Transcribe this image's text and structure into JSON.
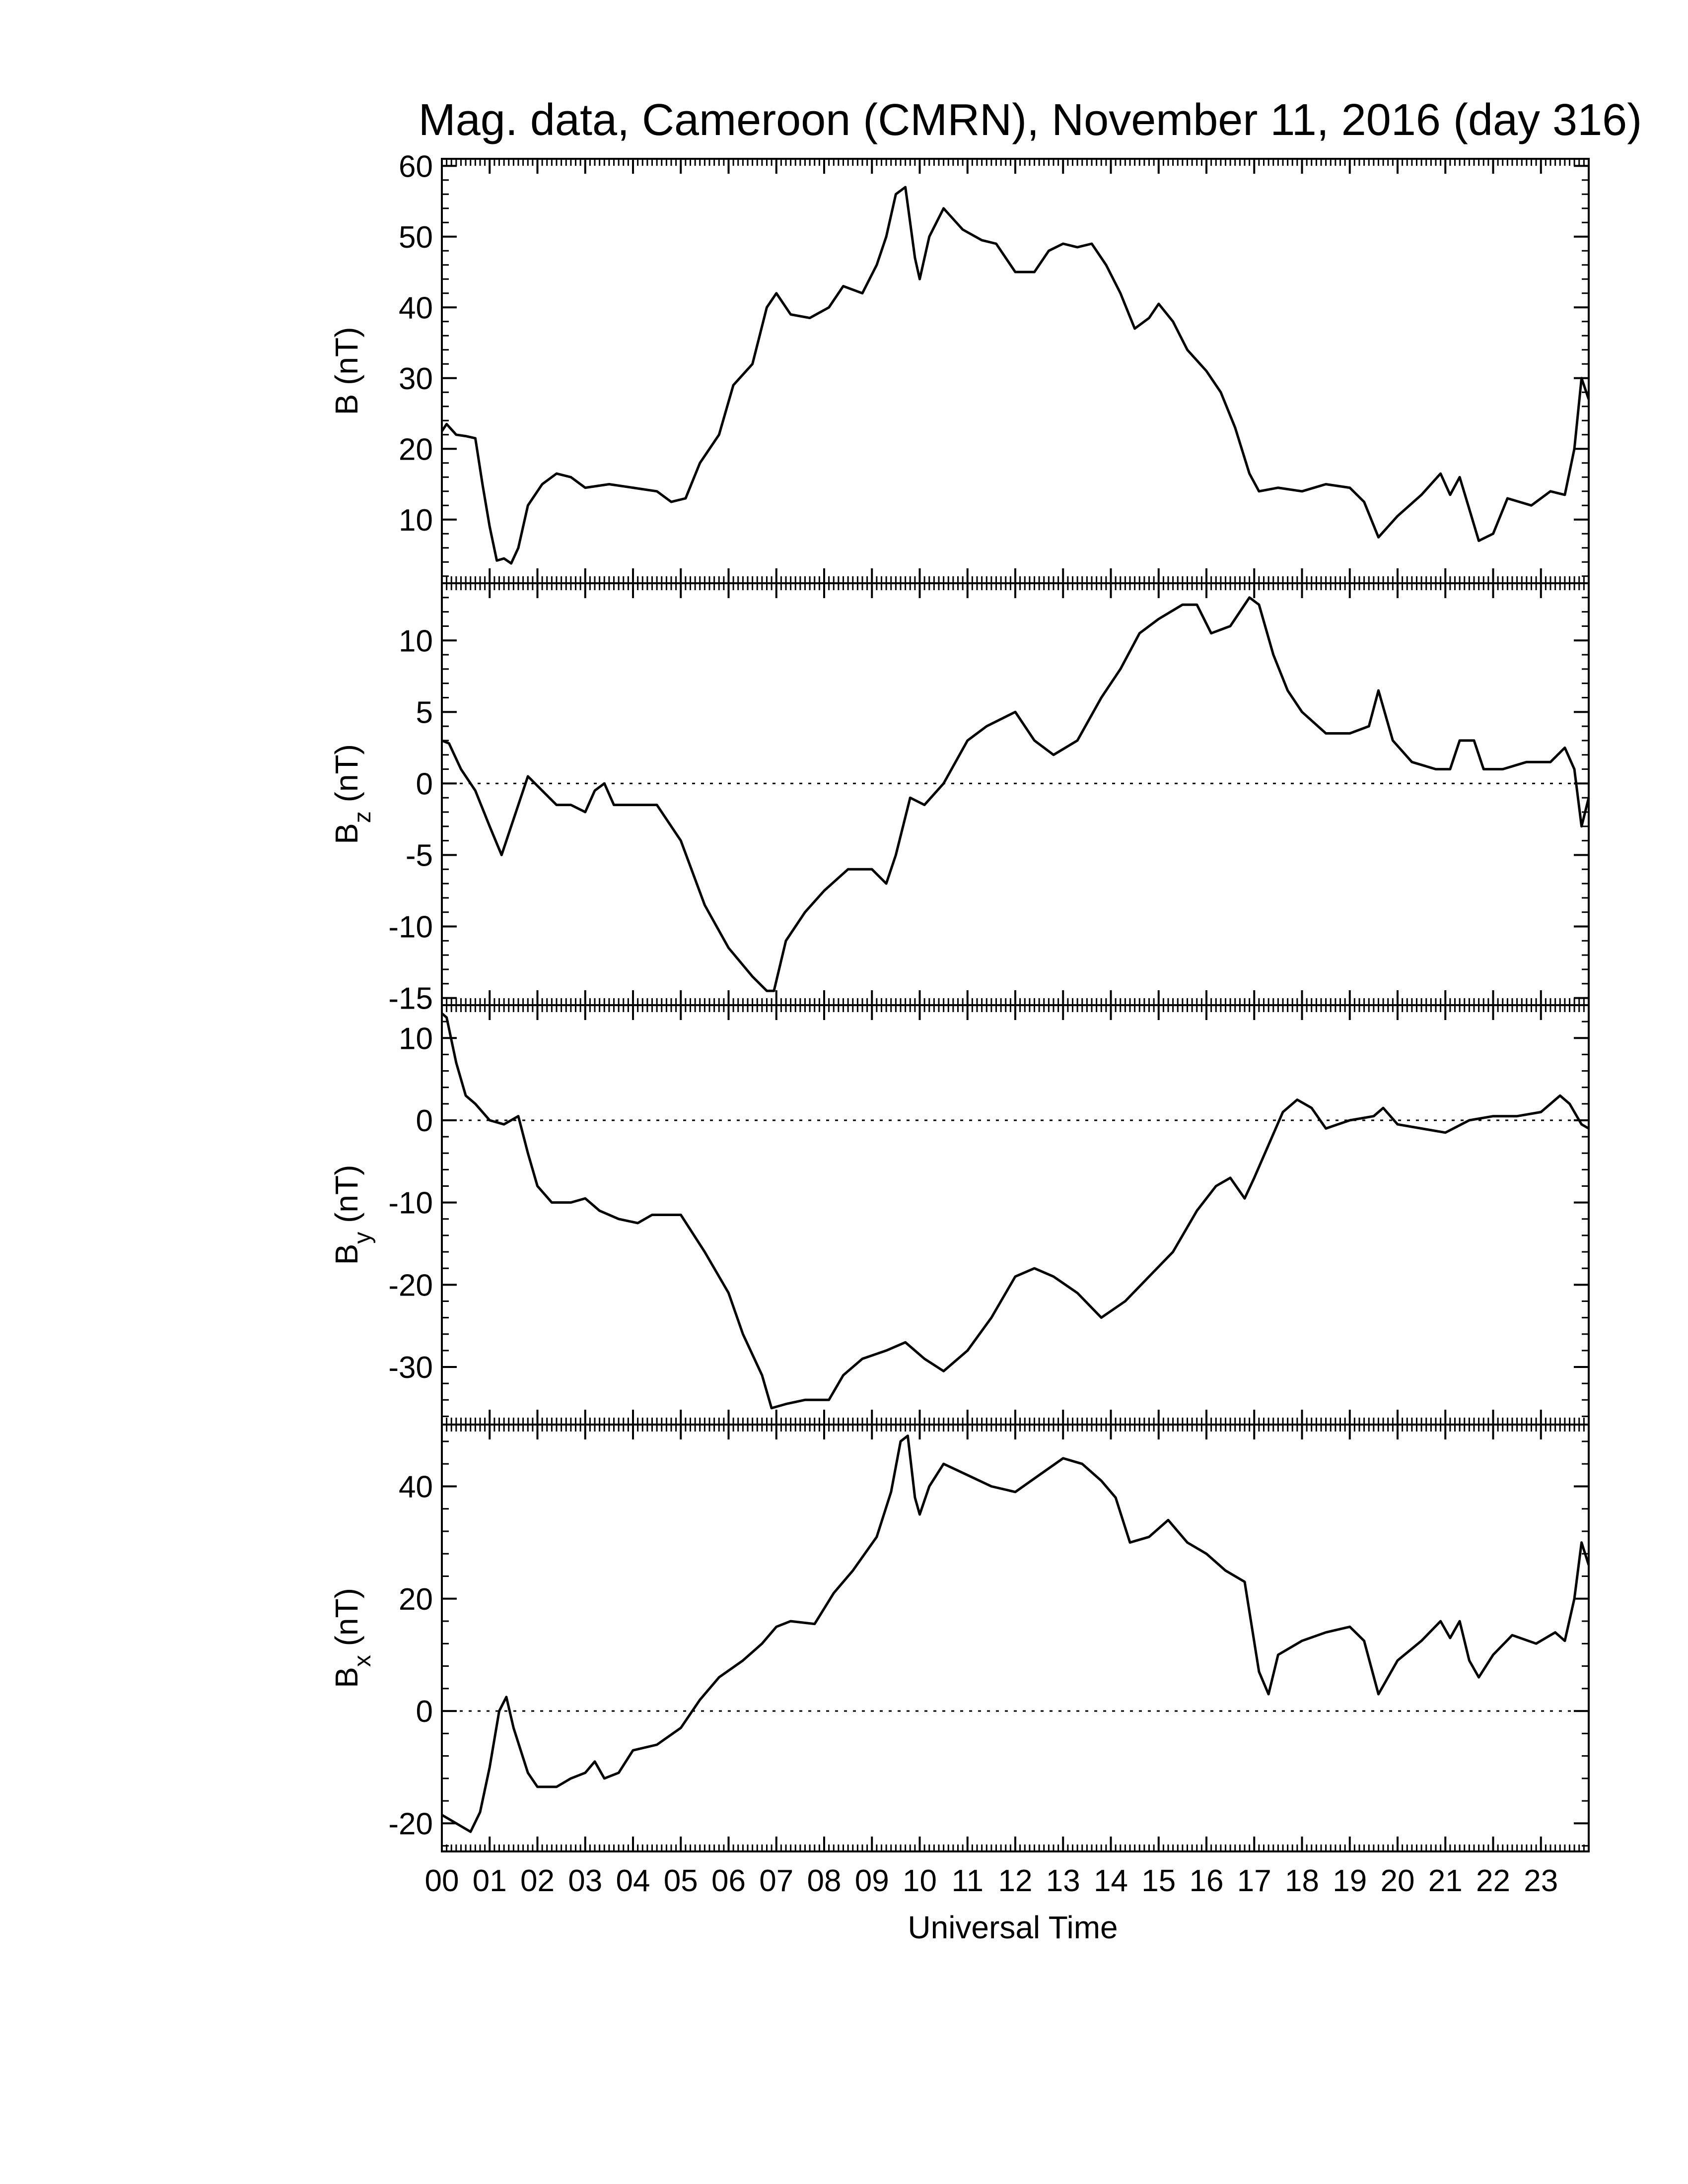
{
  "chart_data": {
    "type": "line",
    "title": "Mag. data, Cameroon (CMRN), November 11, 2016 (day 316)",
    "xlabel": "Universal Time",
    "xlim": [
      0,
      24
    ],
    "x_tick_labels": [
      "00",
      "01",
      "02",
      "03",
      "04",
      "05",
      "06",
      "07",
      "08",
      "09",
      "10",
      "11",
      "12",
      "13",
      "14",
      "15",
      "16",
      "17",
      "18",
      "19",
      "20",
      "21",
      "22",
      "23"
    ],
    "line_color": "#000000",
    "panels": [
      {
        "key": "B",
        "ylabel_main": "B (nT)",
        "ylabel_sub": "",
        "ylim": [
          1,
          61
        ],
        "yticks": [
          10,
          20,
          30,
          40,
          50,
          60
        ],
        "zero_line": false,
        "points": [
          [
            0,
            22.5
          ],
          [
            0.1,
            23.5
          ],
          [
            0.3,
            22
          ],
          [
            0.5,
            21.8
          ],
          [
            0.7,
            21.5
          ],
          [
            0.85,
            15
          ],
          [
            1,
            9
          ],
          [
            1.15,
            4.2
          ],
          [
            1.3,
            4.5
          ],
          [
            1.45,
            3.8
          ],
          [
            1.6,
            6
          ],
          [
            1.8,
            12
          ],
          [
            2.1,
            15
          ],
          [
            2.4,
            16.5
          ],
          [
            2.7,
            16
          ],
          [
            3,
            14.5
          ],
          [
            3.5,
            15
          ],
          [
            4,
            14.5
          ],
          [
            4.5,
            14
          ],
          [
            4.8,
            12.5
          ],
          [
            5.1,
            13
          ],
          [
            5.4,
            18
          ],
          [
            5.8,
            22
          ],
          [
            6.1,
            29
          ],
          [
            6.5,
            32
          ],
          [
            6.8,
            40
          ],
          [
            7,
            42
          ],
          [
            7.3,
            39
          ],
          [
            7.7,
            38.5
          ],
          [
            8.1,
            40
          ],
          [
            8.4,
            43
          ],
          [
            8.8,
            42
          ],
          [
            9.1,
            46
          ],
          [
            9.3,
            50
          ],
          [
            9.5,
            56
          ],
          [
            9.7,
            57
          ],
          [
            9.9,
            47
          ],
          [
            10,
            44
          ],
          [
            10.2,
            50
          ],
          [
            10.5,
            54
          ],
          [
            10.9,
            51
          ],
          [
            11.3,
            49.5
          ],
          [
            11.6,
            49
          ],
          [
            12,
            45
          ],
          [
            12.4,
            45
          ],
          [
            12.7,
            48
          ],
          [
            13,
            49
          ],
          [
            13.3,
            48.5
          ],
          [
            13.6,
            49
          ],
          [
            13.9,
            46
          ],
          [
            14.2,
            42
          ],
          [
            14.5,
            37
          ],
          [
            14.8,
            38.5
          ],
          [
            15,
            40.5
          ],
          [
            15.3,
            38
          ],
          [
            15.6,
            34
          ],
          [
            16,
            31
          ],
          [
            16.3,
            28
          ],
          [
            16.6,
            23
          ],
          [
            16.9,
            16.5
          ],
          [
            17.1,
            14
          ],
          [
            17.5,
            14.5
          ],
          [
            18,
            14
          ],
          [
            18.5,
            15
          ],
          [
            19,
            14.5
          ],
          [
            19.3,
            12.5
          ],
          [
            19.6,
            7.5
          ],
          [
            20,
            10.5
          ],
          [
            20.5,
            13.5
          ],
          [
            20.9,
            16.5
          ],
          [
            21.1,
            13.5
          ],
          [
            21.3,
            16
          ],
          [
            21.5,
            11.5
          ],
          [
            21.7,
            7
          ],
          [
            22,
            8
          ],
          [
            22.3,
            13
          ],
          [
            22.8,
            12
          ],
          [
            23.2,
            14
          ],
          [
            23.5,
            13.5
          ],
          [
            23.7,
            20
          ],
          [
            23.85,
            30
          ],
          [
            24,
            27
          ]
        ]
      },
      {
        "key": "Bz",
        "ylabel_main": "B",
        "ylabel_sub": "z",
        "ylabel_unit": "(nT)",
        "ylim": [
          -15.5,
          14
        ],
        "yticks": [
          -15,
          -10,
          -5,
          0,
          5,
          10
        ],
        "zero_line": true,
        "points": [
          [
            0,
            3
          ],
          [
            0.15,
            2.8
          ],
          [
            0.4,
            1
          ],
          [
            0.7,
            -0.5
          ],
          [
            1,
            -3
          ],
          [
            1.25,
            -5
          ],
          [
            1.5,
            -2.5
          ],
          [
            1.8,
            0.5
          ],
          [
            2.1,
            -0.5
          ],
          [
            2.4,
            -1.5
          ],
          [
            2.7,
            -1.5
          ],
          [
            3,
            -2
          ],
          [
            3.2,
            -0.5
          ],
          [
            3.4,
            0
          ],
          [
            3.6,
            -1.5
          ],
          [
            4,
            -1.5
          ],
          [
            4.5,
            -1.5
          ],
          [
            5,
            -4
          ],
          [
            5.5,
            -8.5
          ],
          [
            6,
            -11.5
          ],
          [
            6.5,
            -13.5
          ],
          [
            6.8,
            -14.5
          ],
          [
            6.95,
            -14.5
          ],
          [
            7.2,
            -11
          ],
          [
            7.6,
            -9
          ],
          [
            8,
            -7.5
          ],
          [
            8.5,
            -6
          ],
          [
            9,
            -6
          ],
          [
            9.3,
            -7
          ],
          [
            9.5,
            -5
          ],
          [
            9.8,
            -1
          ],
          [
            10.1,
            -1.5
          ],
          [
            10.5,
            0
          ],
          [
            11,
            3
          ],
          [
            11.4,
            4
          ],
          [
            12,
            5
          ],
          [
            12.4,
            3
          ],
          [
            12.8,
            2
          ],
          [
            13.3,
            3
          ],
          [
            13.8,
            6
          ],
          [
            14.2,
            8
          ],
          [
            14.6,
            10.5
          ],
          [
            15,
            11.5
          ],
          [
            15.5,
            12.5
          ],
          [
            15.8,
            12.5
          ],
          [
            16.1,
            10.5
          ],
          [
            16.5,
            11
          ],
          [
            16.9,
            13
          ],
          [
            17.1,
            12.5
          ],
          [
            17.4,
            9
          ],
          [
            17.7,
            6.5
          ],
          [
            18,
            5
          ],
          [
            18.5,
            3.5
          ],
          [
            19,
            3.5
          ],
          [
            19.4,
            4
          ],
          [
            19.6,
            6.5
          ],
          [
            19.9,
            3
          ],
          [
            20.3,
            1.5
          ],
          [
            20.8,
            1
          ],
          [
            21.1,
            1
          ],
          [
            21.3,
            3
          ],
          [
            21.6,
            3
          ],
          [
            21.8,
            1
          ],
          [
            22.2,
            1
          ],
          [
            22.7,
            1.5
          ],
          [
            23.2,
            1.5
          ],
          [
            23.5,
            2.5
          ],
          [
            23.7,
            1
          ],
          [
            23.85,
            -3
          ],
          [
            24,
            -1
          ]
        ]
      },
      {
        "key": "By",
        "ylabel_main": "B",
        "ylabel_sub": "y",
        "ylabel_unit": "(nT)",
        "ylim": [
          -37,
          14
        ],
        "yticks": [
          -30,
          -20,
          -10,
          0,
          10
        ],
        "zero_line": true,
        "points": [
          [
            0,
            13
          ],
          [
            0.1,
            12.5
          ],
          [
            0.3,
            7
          ],
          [
            0.5,
            3
          ],
          [
            0.7,
            2
          ],
          [
            1,
            0
          ],
          [
            1.3,
            -0.5
          ],
          [
            1.6,
            0.5
          ],
          [
            1.8,
            -4
          ],
          [
            2,
            -8
          ],
          [
            2.3,
            -10
          ],
          [
            2.7,
            -10
          ],
          [
            3,
            -9.5
          ],
          [
            3.3,
            -11
          ],
          [
            3.7,
            -12
          ],
          [
            4.1,
            -12.5
          ],
          [
            4.4,
            -11.5
          ],
          [
            5,
            -11.5
          ],
          [
            5.5,
            -16
          ],
          [
            6,
            -21
          ],
          [
            6.3,
            -26
          ],
          [
            6.7,
            -31
          ],
          [
            6.9,
            -35
          ],
          [
            7.2,
            -34.5
          ],
          [
            7.6,
            -34
          ],
          [
            8.1,
            -34
          ],
          [
            8.4,
            -31
          ],
          [
            8.8,
            -29
          ],
          [
            9.3,
            -28
          ],
          [
            9.7,
            -27
          ],
          [
            10.1,
            -29
          ],
          [
            10.5,
            -30.5
          ],
          [
            11,
            -28
          ],
          [
            11.5,
            -24
          ],
          [
            12,
            -19
          ],
          [
            12.4,
            -18
          ],
          [
            12.8,
            -19
          ],
          [
            13.3,
            -21
          ],
          [
            13.8,
            -24
          ],
          [
            14.3,
            -22
          ],
          [
            14.8,
            -19
          ],
          [
            15.3,
            -16
          ],
          [
            15.8,
            -11
          ],
          [
            16.2,
            -8
          ],
          [
            16.5,
            -7
          ],
          [
            16.8,
            -9.5
          ],
          [
            17,
            -7
          ],
          [
            17.3,
            -3
          ],
          [
            17.6,
            1
          ],
          [
            17.9,
            2.5
          ],
          [
            18.2,
            1.5
          ],
          [
            18.5,
            -1
          ],
          [
            19,
            0
          ],
          [
            19.5,
            0.5
          ],
          [
            19.7,
            1.5
          ],
          [
            20,
            -0.5
          ],
          [
            20.5,
            -1
          ],
          [
            21,
            -1.5
          ],
          [
            21.5,
            0
          ],
          [
            22,
            0.5
          ],
          [
            22.5,
            0.5
          ],
          [
            23,
            1
          ],
          [
            23.4,
            3
          ],
          [
            23.6,
            2
          ],
          [
            23.85,
            -0.5
          ],
          [
            24,
            -1
          ]
        ]
      },
      {
        "key": "Bx",
        "ylabel_main": "B",
        "ylabel_sub": "x",
        "ylabel_unit": "(nT)",
        "ylim": [
          -25,
          51
        ],
        "yticks": [
          -20,
          0,
          20,
          40
        ],
        "zero_line": true,
        "points": [
          [
            0,
            -18.5
          ],
          [
            0.3,
            -20
          ],
          [
            0.6,
            -21.5
          ],
          [
            0.8,
            -18
          ],
          [
            1,
            -10
          ],
          [
            1.2,
            0
          ],
          [
            1.35,
            2.5
          ],
          [
            1.5,
            -3
          ],
          [
            1.8,
            -11
          ],
          [
            2,
            -13.5
          ],
          [
            2.4,
            -13.5
          ],
          [
            2.7,
            -12
          ],
          [
            3,
            -11
          ],
          [
            3.2,
            -9
          ],
          [
            3.4,
            -12
          ],
          [
            3.7,
            -11
          ],
          [
            4,
            -7
          ],
          [
            4.5,
            -6
          ],
          [
            5,
            -3
          ],
          [
            5.4,
            2
          ],
          [
            5.8,
            6
          ],
          [
            6.3,
            9
          ],
          [
            6.7,
            12
          ],
          [
            7,
            15
          ],
          [
            7.3,
            16
          ],
          [
            7.8,
            15.5
          ],
          [
            8.2,
            21
          ],
          [
            8.6,
            25
          ],
          [
            9.1,
            31
          ],
          [
            9.4,
            39
          ],
          [
            9.6,
            48
          ],
          [
            9.75,
            49
          ],
          [
            9.9,
            38
          ],
          [
            10,
            35
          ],
          [
            10.2,
            40
          ],
          [
            10.5,
            44
          ],
          [
            11,
            42
          ],
          [
            11.5,
            40
          ],
          [
            12,
            39
          ],
          [
            12.5,
            42
          ],
          [
            13,
            45
          ],
          [
            13.4,
            44
          ],
          [
            13.8,
            41
          ],
          [
            14.1,
            38
          ],
          [
            14.4,
            30
          ],
          [
            14.8,
            31
          ],
          [
            15.2,
            34
          ],
          [
            15.6,
            30
          ],
          [
            16,
            28
          ],
          [
            16.4,
            25
          ],
          [
            16.8,
            23
          ],
          [
            17.1,
            7
          ],
          [
            17.3,
            3
          ],
          [
            17.5,
            10
          ],
          [
            18,
            12.5
          ],
          [
            18.5,
            14
          ],
          [
            19,
            15
          ],
          [
            19.3,
            12.5
          ],
          [
            19.6,
            3
          ],
          [
            20,
            9
          ],
          [
            20.5,
            12.5
          ],
          [
            20.9,
            16
          ],
          [
            21.1,
            13
          ],
          [
            21.3,
            16
          ],
          [
            21.5,
            9
          ],
          [
            21.7,
            6
          ],
          [
            22,
            10
          ],
          [
            22.4,
            13.5
          ],
          [
            22.9,
            12
          ],
          [
            23.3,
            14
          ],
          [
            23.5,
            12.5
          ],
          [
            23.7,
            20
          ],
          [
            23.85,
            30
          ],
          [
            24,
            26
          ]
        ]
      }
    ]
  }
}
